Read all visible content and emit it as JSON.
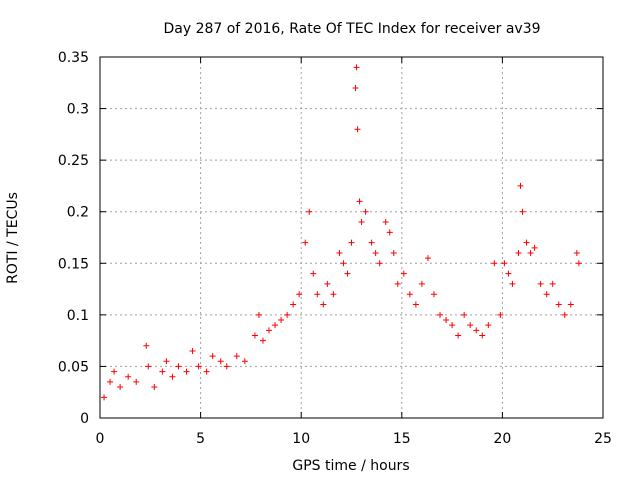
{
  "chart_data": {
    "type": "scatter",
    "title": "Day 287 of 2016, Rate Of TEC Index for receiver av39",
    "xlabel": "GPS time / hours",
    "ylabel": "ROTI / TECUs",
    "xlim": [
      0,
      25
    ],
    "ylim": [
      0,
      0.35
    ],
    "x_ticks": [
      0,
      5,
      10,
      15,
      20,
      25
    ],
    "y_ticks": [
      0,
      0.05,
      0.1,
      0.15,
      0.2,
      0.25,
      0.3,
      0.35
    ],
    "x_tick_labels": [
      "0",
      "5",
      "10",
      "15",
      "20",
      "25"
    ],
    "y_tick_labels": [
      "0",
      "0.05",
      "0.1",
      "0.15",
      "0.2",
      "0.25",
      "0.3",
      "0.35"
    ],
    "grid": true,
    "marker": "+",
    "marker_color": "#ff0000",
    "series": [
      {
        "name": "ROTI",
        "x": [
          0.2,
          0.5,
          0.7,
          1.0,
          1.4,
          1.8,
          2.3,
          2.4,
          2.7,
          3.1,
          3.3,
          3.6,
          3.9,
          4.3,
          4.6,
          4.9,
          5.3,
          5.6,
          6.0,
          6.3,
          6.8,
          7.2,
          7.7,
          7.9,
          8.1,
          8.4,
          8.7,
          9.0,
          9.3,
          9.6,
          9.9,
          10.2,
          10.4,
          10.6,
          10.8,
          11.1,
          11.3,
          11.6,
          11.9,
          12.1,
          12.3,
          12.5,
          12.7,
          12.75,
          12.8,
          12.9,
          13.0,
          13.2,
          13.5,
          13.7,
          13.9,
          14.2,
          14.4,
          14.6,
          14.8,
          15.1,
          15.4,
          15.7,
          16.0,
          16.3,
          16.6,
          16.9,
          17.2,
          17.5,
          17.8,
          18.1,
          18.4,
          18.7,
          19.0,
          19.3,
          19.6,
          19.9,
          20.1,
          20.3,
          20.5,
          20.8,
          20.9,
          21.0,
          21.2,
          21.4,
          21.6,
          21.9,
          22.2,
          22.5,
          22.8,
          23.1,
          23.4,
          23.7,
          23.8
        ],
        "y": [
          0.02,
          0.035,
          0.045,
          0.03,
          0.04,
          0.035,
          0.07,
          0.05,
          0.03,
          0.045,
          0.055,
          0.04,
          0.05,
          0.045,
          0.065,
          0.05,
          0.045,
          0.06,
          0.055,
          0.05,
          0.06,
          0.055,
          0.08,
          0.1,
          0.075,
          0.085,
          0.09,
          0.095,
          0.1,
          0.11,
          0.12,
          0.17,
          0.2,
          0.14,
          0.12,
          0.11,
          0.13,
          0.12,
          0.16,
          0.15,
          0.14,
          0.17,
          0.32,
          0.34,
          0.28,
          0.21,
          0.19,
          0.2,
          0.17,
          0.16,
          0.15,
          0.19,
          0.18,
          0.16,
          0.13,
          0.14,
          0.12,
          0.11,
          0.13,
          0.155,
          0.12,
          0.1,
          0.095,
          0.09,
          0.08,
          0.1,
          0.09,
          0.085,
          0.08,
          0.09,
          0.15,
          0.1,
          0.15,
          0.14,
          0.13,
          0.16,
          0.225,
          0.2,
          0.17,
          0.16,
          0.165,
          0.13,
          0.12,
          0.13,
          0.11,
          0.1,
          0.11,
          0.16,
          0.15
        ]
      }
    ]
  }
}
